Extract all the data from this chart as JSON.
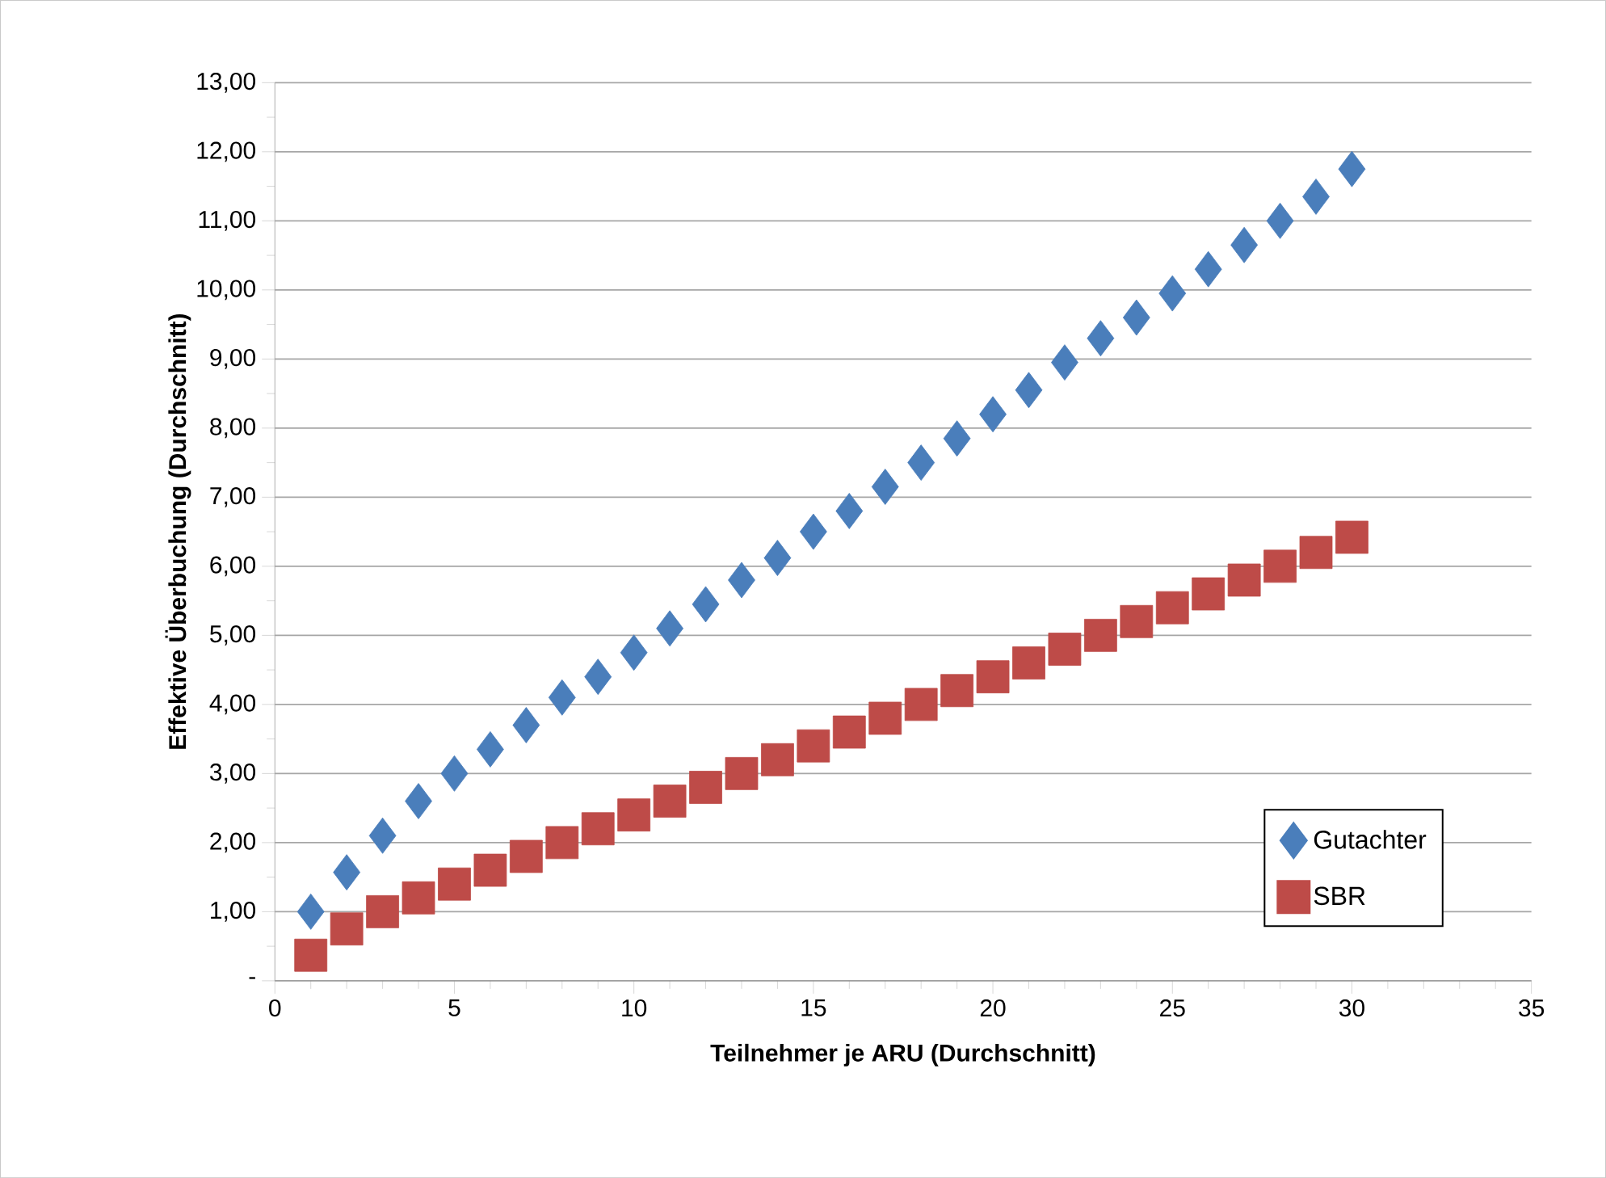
{
  "chart_data": {
    "type": "scatter",
    "xlabel": "Teilnehmer je ARU (Durchschnitt)",
    "ylabel": "Effektive Überbuchung (Durchschnitt)",
    "x": [
      1,
      2,
      3,
      4,
      5,
      6,
      7,
      8,
      9,
      10,
      11,
      12,
      13,
      14,
      15,
      16,
      17,
      18,
      19,
      20,
      21,
      22,
      23,
      24,
      25,
      26,
      27,
      28,
      29,
      30
    ],
    "series": [
      {
        "name": "Gutachter",
        "color": "#4a7ebb",
        "marker": "diamond",
        "values": [
          1.0,
          1.57,
          2.1,
          2.6,
          3.0,
          3.35,
          3.7,
          4.1,
          4.4,
          4.75,
          5.1,
          5.45,
          5.8,
          6.12,
          6.5,
          6.8,
          7.15,
          7.5,
          7.85,
          8.2,
          8.55,
          8.95,
          9.3,
          9.6,
          9.95,
          10.3,
          10.65,
          11.0,
          11.35,
          11.75
        ]
      },
      {
        "name": "SBR",
        "color": "#be4b48",
        "marker": "square",
        "values": [
          0.37,
          0.75,
          1.0,
          1.2,
          1.4,
          1.6,
          1.8,
          2.0,
          2.2,
          2.4,
          2.6,
          2.8,
          3.0,
          3.2,
          3.4,
          3.6,
          3.8,
          4.0,
          4.2,
          4.4,
          4.6,
          4.8,
          5.0,
          5.2,
          5.4,
          5.6,
          5.8,
          6.0,
          6.2,
          6.42
        ]
      }
    ],
    "xlim": [
      0,
      35
    ],
    "xticks": [
      0,
      5,
      10,
      15,
      20,
      25,
      30,
      35
    ],
    "ylim": [
      0,
      13
    ],
    "yticks": [
      {
        "value": 0,
        "label": "-"
      },
      {
        "value": 1,
        "label": "1,00"
      },
      {
        "value": 2,
        "label": "2,00"
      },
      {
        "value": 3,
        "label": "3,00"
      },
      {
        "value": 4,
        "label": "4,00"
      },
      {
        "value": 5,
        "label": "5,00"
      },
      {
        "value": 6,
        "label": "6,00"
      },
      {
        "value": 7,
        "label": "7,00"
      },
      {
        "value": 8,
        "label": "8,00"
      },
      {
        "value": 9,
        "label": "9,00"
      },
      {
        "value": 10,
        "label": "10,00"
      },
      {
        "value": 11,
        "label": "11,00"
      },
      {
        "value": 12,
        "label": "12,00"
      },
      {
        "value": 13,
        "label": "13,00"
      }
    ],
    "grid": "y",
    "legend": "bottom right"
  }
}
